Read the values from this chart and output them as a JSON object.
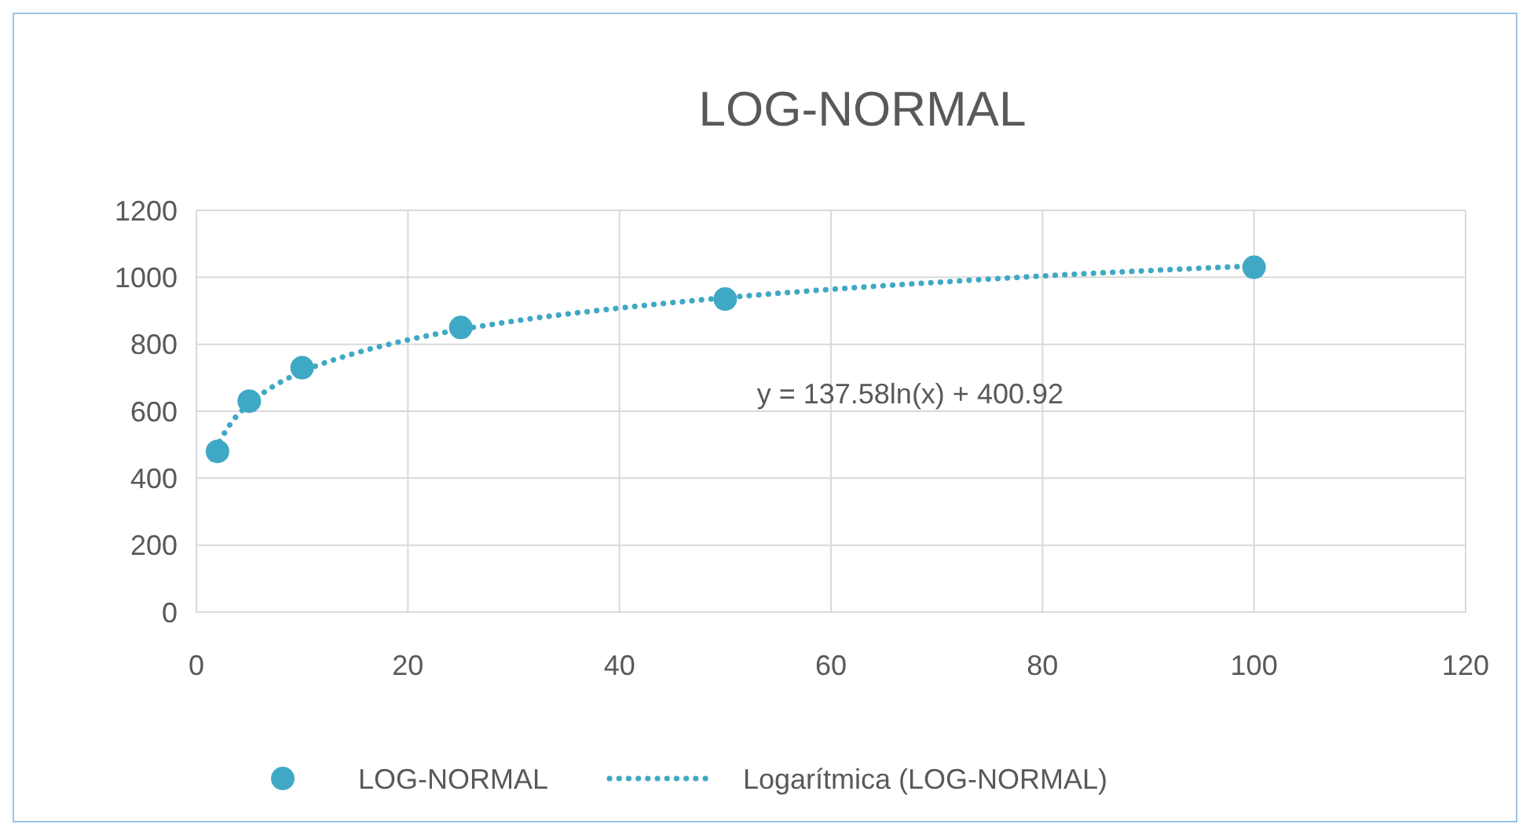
{
  "chart_data": {
    "type": "scatter",
    "title": "LOG-NORMAL",
    "xlim": [
      0,
      120
    ],
    "xticks": [
      0,
      20,
      40,
      60,
      80,
      100,
      120
    ],
    "ylim": [
      0,
      1200
    ],
    "yticks": [
      0,
      200,
      400,
      600,
      800,
      1000,
      1200
    ],
    "grid": true,
    "legend": "bottom",
    "annotations": [
      "y = 137.58ln(x) + 400.92"
    ],
    "series": [
      {
        "name": "LOG-NORMAL",
        "marker": "circle",
        "color": "#3fa9c5",
        "x": [
          2,
          5,
          10,
          25,
          50,
          100
        ],
        "values": [
          480,
          630,
          730,
          850,
          935,
          1030
        ]
      },
      {
        "name": "Logarítmica (LOG-NORMAL)",
        "type": "line",
        "line_style": "dotted",
        "marker": "none",
        "color": "#3fa9c5",
        "x": [
          1.5,
          2,
          3,
          5,
          7,
          10,
          15,
          20,
          30,
          40,
          50,
          60,
          70,
          80,
          90,
          100
        ],
        "values": [
          457,
          496,
          552,
          622,
          669,
          718,
          773,
          813,
          869,
          908,
          939,
          964,
          985,
          1004,
          1020,
          1034
        ]
      }
    ]
  }
}
